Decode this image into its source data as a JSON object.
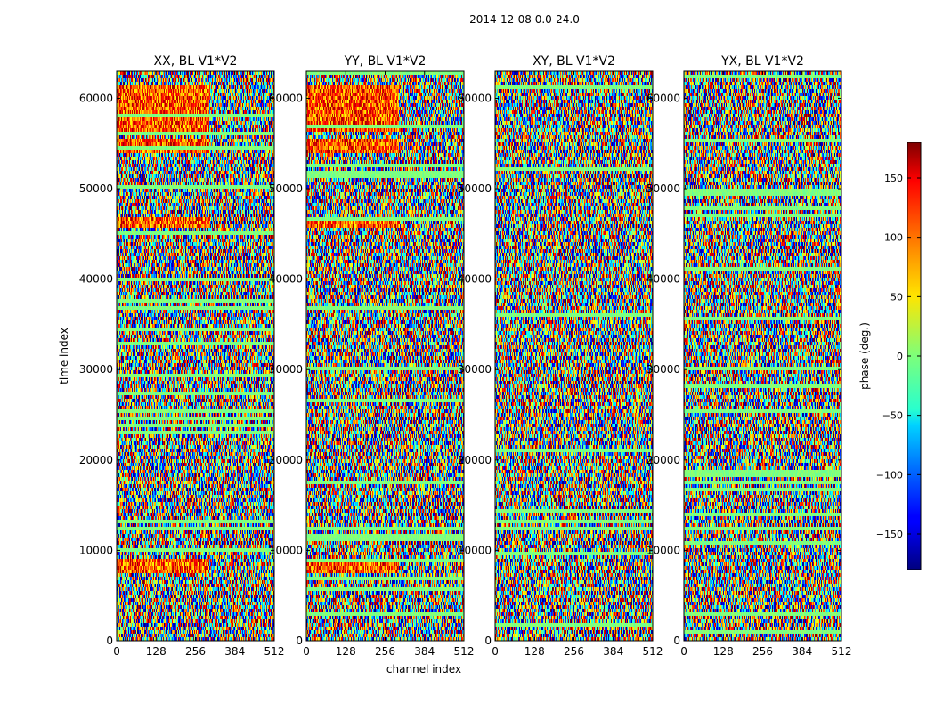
{
  "suptitle": "2014-12-08 0.0-24.0",
  "chart_data": {
    "type": "heatmap",
    "xlabel": "channel index",
    "ylabel": "time index",
    "xlim": [
      0,
      512
    ],
    "ylim": [
      0,
      63000
    ],
    "xticks": [
      0,
      128,
      256,
      384,
      512
    ],
    "yticks": [
      0,
      10000,
      20000,
      30000,
      40000,
      50000,
      60000
    ],
    "xtick_labels": [
      "0",
      "128",
      "256",
      "384",
      "512"
    ],
    "ytick_labels": [
      "0",
      "10000",
      "20000",
      "30000",
      "40000",
      "50000",
      "60000"
    ],
    "colormap": "jet",
    "panels": [
      {
        "title": "XX, BL V1*V2",
        "pol": "XX"
      },
      {
        "title": "YY, BL V1*V2",
        "pol": "YY"
      },
      {
        "title": "XY, BL V1*V2",
        "pol": "XY"
      },
      {
        "title": "YX, BL V1*V2",
        "pol": "YX"
      }
    ],
    "colorbar": {
      "label": "phase (deg.)",
      "range": [
        -180,
        180
      ],
      "ticks": [
        150,
        100,
        50,
        0,
        -50,
        -100,
        -150
      ],
      "tick_labels": [
        "150",
        "100",
        "50",
        "0",
        "−50",
        "−100",
        "−150"
      ]
    }
  }
}
